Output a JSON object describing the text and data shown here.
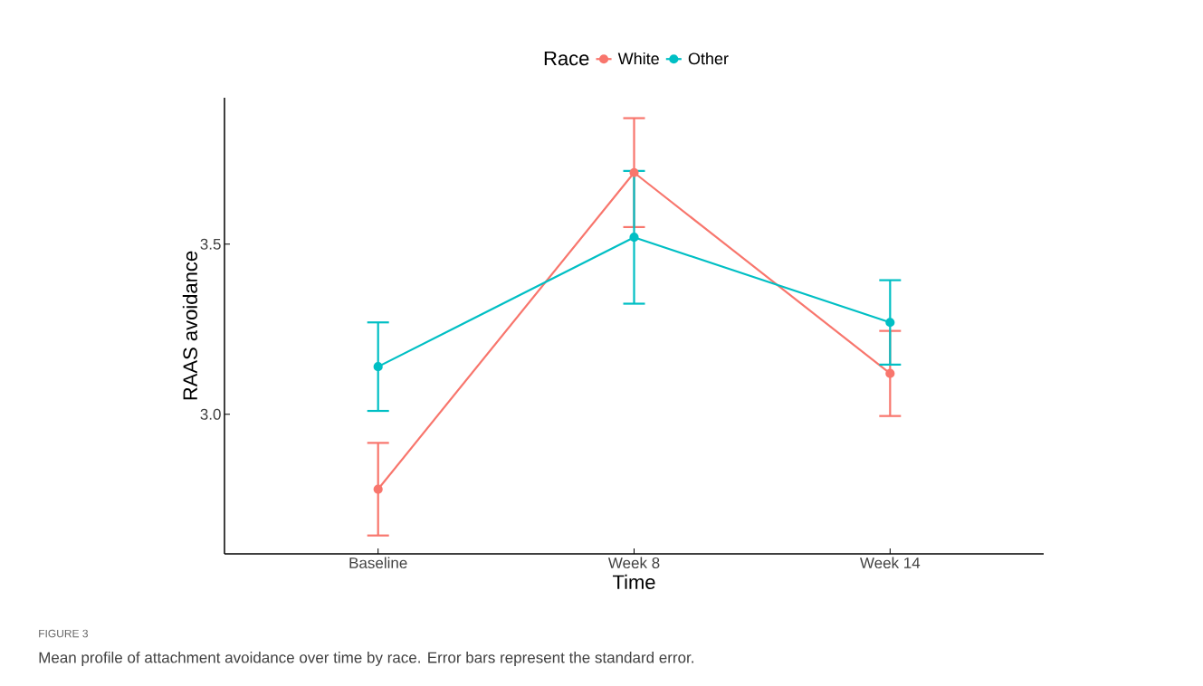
{
  "chart_data": {
    "type": "line",
    "xlabel": "Time",
    "ylabel": "RAAS avoidance",
    "legend_title": "Race",
    "legend": "top",
    "marker": "circle",
    "line_style": "solid",
    "categories": [
      "Baseline",
      "Week 8",
      "Week 14"
    ],
    "ylim": [
      2.59,
      3.93
    ],
    "yticks": [
      {
        "value": 3,
        "label": "3.0"
      },
      {
        "value": 3.5,
        "label": "3.5"
      }
    ],
    "series": [
      {
        "name": "White",
        "color": "#f8766d",
        "values": [
          2.78,
          3.71,
          3.12
        ],
        "errors": [
          0.136,
          0.16,
          0.125
        ]
      },
      {
        "name": "Other",
        "color": "#00bfc4",
        "values": [
          3.14,
          3.52,
          3.27
        ],
        "errors": [
          0.13,
          0.195,
          0.124
        ]
      }
    ],
    "annotations": [
      "FIGURE 3",
      "Mean profile of attachment avoidance over time by race. Error bars represent the standard error."
    ]
  }
}
